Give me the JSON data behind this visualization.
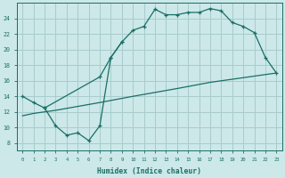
{
  "xlabel": "Humidex (Indice chaleur)",
  "xlim": [
    -0.5,
    23.5
  ],
  "ylim": [
    7.0,
    26.0
  ],
  "xticks": [
    0,
    1,
    2,
    3,
    4,
    5,
    6,
    7,
    8,
    9,
    10,
    11,
    12,
    13,
    14,
    15,
    16,
    17,
    18,
    19,
    20,
    21,
    22,
    23
  ],
  "yticks": [
    8,
    10,
    12,
    14,
    16,
    18,
    20,
    22,
    24
  ],
  "bg_color": "#cce8e8",
  "grid_color": "#a8cccc",
  "line_color": "#1a6e66",
  "curve_upper_x": [
    0,
    1,
    2,
    7,
    8,
    9,
    10,
    11,
    12,
    13,
    14,
    15,
    16,
    17,
    18,
    19,
    20,
    21,
    22,
    23
  ],
  "curve_upper_y": [
    14.0,
    13.2,
    12.5,
    16.5,
    19.0,
    21.0,
    22.5,
    23.0,
    25.2,
    24.5,
    24.5,
    24.8,
    24.8,
    25.3,
    25.0,
    23.5,
    23.0,
    22.2,
    19.0,
    17.0
  ],
  "curve_lower_x": [
    2,
    3,
    4,
    5,
    6,
    7,
    8,
    9
  ],
  "curve_lower_y": [
    12.5,
    10.2,
    9.0,
    9.3,
    8.3,
    10.2,
    19.0,
    21.0
  ],
  "curve_trend_x": [
    0,
    1,
    2,
    3,
    7,
    10,
    14,
    17,
    19,
    21,
    23
  ],
  "curve_trend_y": [
    11.5,
    11.8,
    12.0,
    12.2,
    13.2,
    14.0,
    15.0,
    15.8,
    16.2,
    16.6,
    17.0
  ]
}
